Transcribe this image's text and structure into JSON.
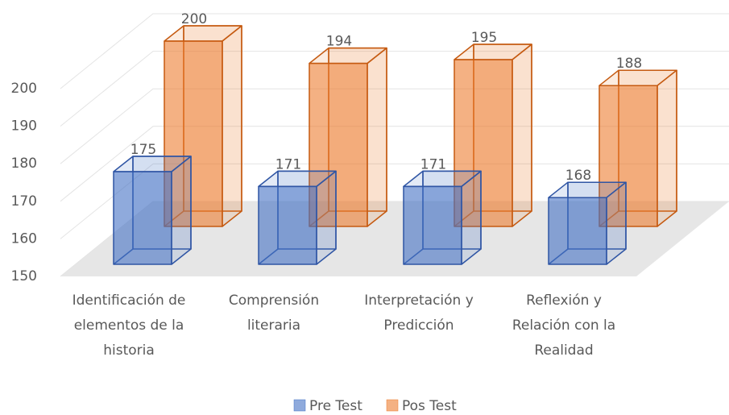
{
  "chart_data": {
    "type": "bar3d",
    "categories": [
      "Identificación de elementos de la historia",
      "Comprensión literaria",
      "Interpretación y Predicción",
      "Reflexión y Relación con la Realidad"
    ],
    "series": [
      {
        "name": "Pre Test",
        "color": "#4472c4",
        "values": [
          175,
          171,
          171,
          168
        ]
      },
      {
        "name": "Pos Test",
        "color": "#ed7d31",
        "values": [
          200,
          194,
          195,
          188
        ]
      }
    ],
    "ylim": [
      150,
      200
    ],
    "yticks": [
      150,
      160,
      170,
      180,
      190,
      200
    ],
    "grid": true,
    "legend": "bottom"
  }
}
